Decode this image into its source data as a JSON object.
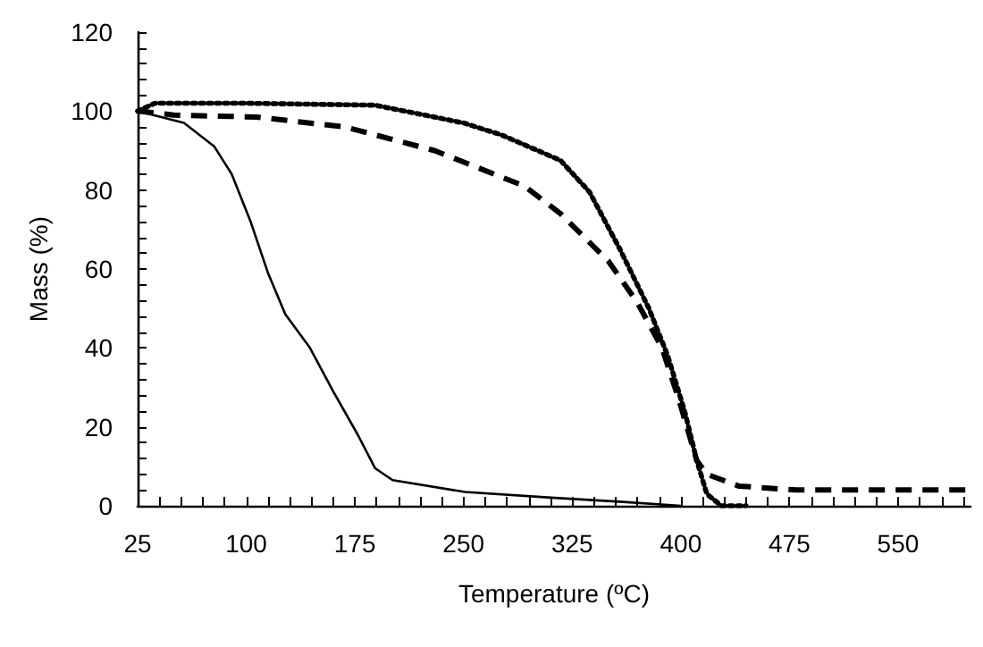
{
  "chart_data": {
    "type": "line",
    "xlabel": "Temperature (ºC)",
    "ylabel": "Mass (%)",
    "xlim": [
      25,
      600
    ],
    "ylim": [
      0,
      120
    ],
    "xticks": [
      25,
      {
        "value": 40,
        "label": null
      },
      {
        "value": 55,
        "label": null
      },
      {
        "value": 70,
        "label": null
      },
      {
        "value": 85,
        "label": null
      },
      100,
      {
        "value": 115,
        "label": null
      },
      {
        "value": 130,
        "label": null
      },
      {
        "value": 145,
        "label": null
      },
      {
        "value": 160,
        "label": null
      },
      175,
      {
        "value": 190,
        "label": null
      },
      {
        "value": 205,
        "label": null
      },
      {
        "value": 220,
        "label": null
      },
      {
        "value": 235,
        "label": null
      },
      250,
      {
        "value": 265,
        "label": null
      },
      {
        "value": 280,
        "label": null
      },
      {
        "value": 295,
        "label": null
      },
      {
        "value": 310,
        "label": null
      },
      325,
      {
        "value": 340,
        "label": null
      },
      {
        "value": 355,
        "label": null
      },
      {
        "value": 370,
        "label": null
      },
      {
        "value": 385,
        "label": null
      },
      400,
      {
        "value": 415,
        "label": null
      },
      {
        "value": 430,
        "label": null
      },
      {
        "value": 445,
        "label": null
      },
      {
        "value": 460,
        "label": null
      },
      475,
      {
        "value": 490,
        "label": null
      },
      {
        "value": 505,
        "label": null
      },
      {
        "value": 520,
        "label": null
      },
      {
        "value": 535,
        "label": null
      },
      550,
      {
        "value": 565,
        "label": null
      },
      {
        "value": 580,
        "label": null
      },
      {
        "value": 595,
        "label": null
      }
    ],
    "yticks": [
      0,
      {
        "value": 4,
        "label": null
      },
      {
        "value": 8,
        "label": null
      },
      {
        "value": 12,
        "label": null
      },
      {
        "value": 16,
        "label": null
      },
      20,
      {
        "value": 24,
        "label": null
      },
      {
        "value": 28,
        "label": null
      },
      {
        "value": 32,
        "label": null
      },
      {
        "value": 36,
        "label": null
      },
      40,
      {
        "value": 44,
        "label": null
      },
      {
        "value": 48,
        "label": null
      },
      {
        "value": 52,
        "label": null
      },
      {
        "value": 56,
        "label": null
      },
      60,
      {
        "value": 64,
        "label": null
      },
      {
        "value": 68,
        "label": null
      },
      {
        "value": 72,
        "label": null
      },
      {
        "value": 76,
        "label": null
      },
      80,
      {
        "value": 84,
        "label": null
      },
      {
        "value": 88,
        "label": null
      },
      {
        "value": 92,
        "label": null
      },
      {
        "value": 96,
        "label": null
      },
      100,
      {
        "value": 104,
        "label": null
      },
      {
        "value": 108,
        "label": null
      },
      {
        "value": 112,
        "label": null
      },
      {
        "value": 116,
        "label": null
      },
      120
    ],
    "grid": false,
    "marker": "none",
    "series": [
      {
        "color": "#000000",
        "line_style": "solid",
        "x": [
          25,
          57,
          78,
          90,
          103,
          115,
          127,
          144,
          160,
          177,
          189,
          201,
          251,
          313,
          360,
          400
        ],
        "values": [
          100,
          97,
          91,
          84,
          72,
          59,
          48.5,
          40,
          29,
          18,
          9.5,
          6.5,
          3.5,
          2,
          1,
          0
        ]
      },
      {
        "color": "#000000",
        "line_style": "dashed",
        "x": [
          25,
          50,
          107,
          168,
          230,
          292,
          317,
          350,
          370,
          387,
          399,
          411,
          418,
          440,
          480,
          600
        ],
        "values": [
          100,
          99,
          98.5,
          96,
          90,
          81,
          74,
          62,
          51.5,
          40,
          26.5,
          11.5,
          8,
          5,
          4,
          4
        ]
      },
      {
        "color": "#000000",
        "line_style": "dotted",
        "x": [
          25,
          37,
          100,
          189,
          250,
          276,
          317,
          337,
          358,
          378,
          391,
          403,
          411,
          418,
          428,
          445
        ],
        "values": [
          100,
          102,
          102,
          101.5,
          97,
          94,
          87.5,
          79.5,
          65,
          50,
          38,
          23.5,
          11.5,
          3,
          0,
          0
        ]
      }
    ]
  }
}
